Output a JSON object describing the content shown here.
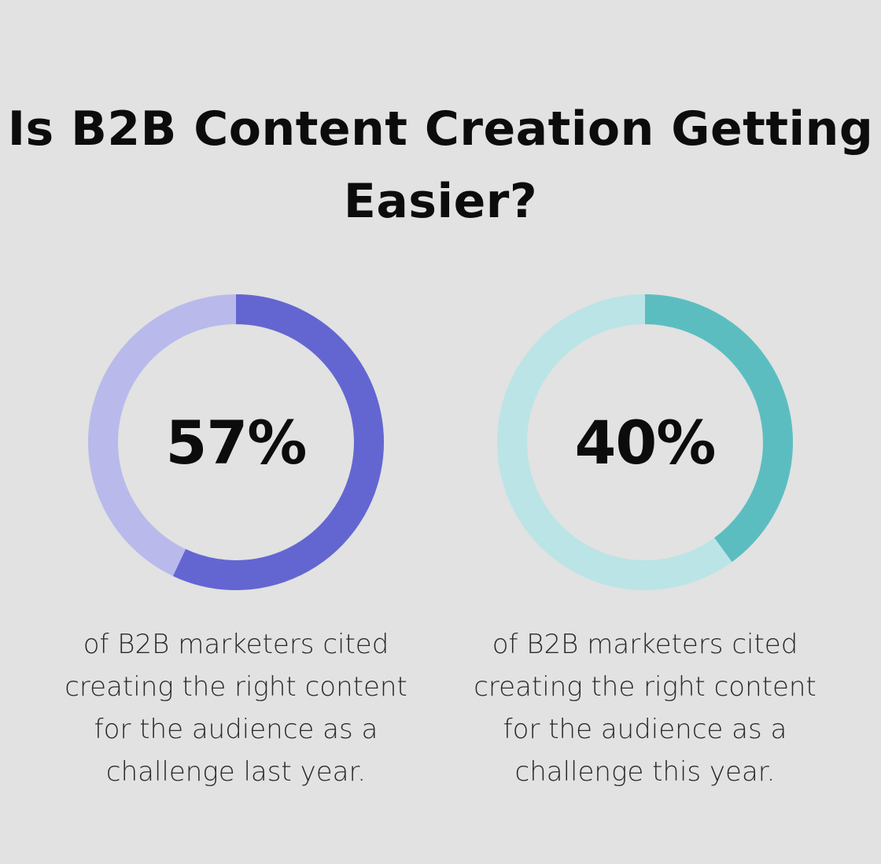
{
  "title": "Is B2B Content Creation Getting Easier?",
  "chart_data": [
    {
      "type": "pie",
      "variant": "donut",
      "value": 57,
      "value_label": "57%",
      "caption": "of B2B marketers cited creating the right content for the audience as a challenge last year.",
      "colors": {
        "fill": "#6366d1",
        "track": "#b9baeb"
      }
    },
    {
      "type": "pie",
      "variant": "donut",
      "value": 40,
      "value_label": "40%",
      "caption": "of B2B marketers cited creating the right content for the audience as a challenge this year.",
      "colors": {
        "fill": "#5cbdc1",
        "track": "#bbe4e6"
      }
    }
  ]
}
